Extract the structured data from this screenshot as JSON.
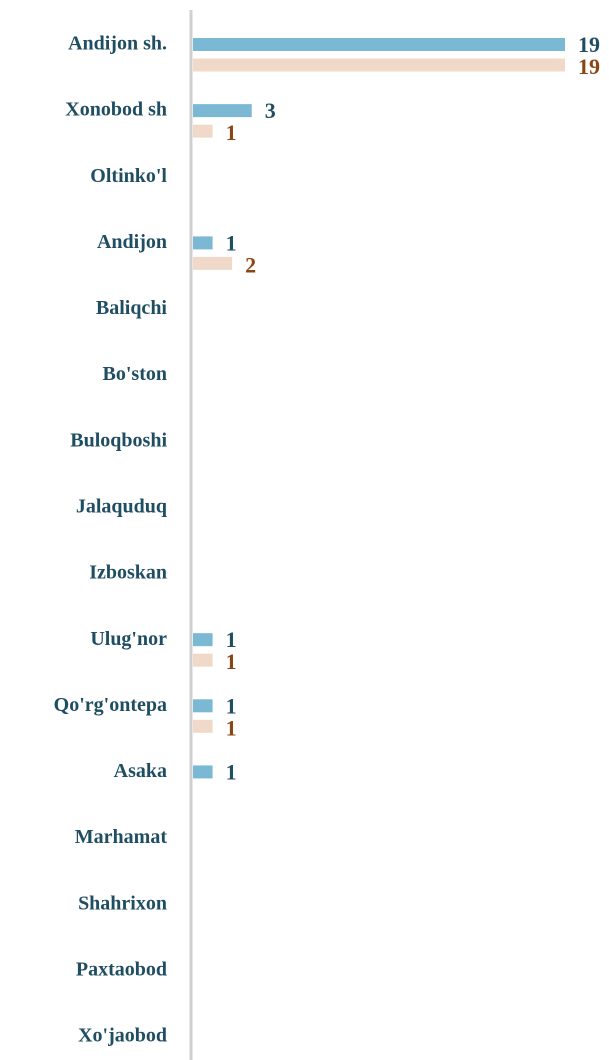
{
  "chart_data": {
    "type": "bar",
    "orientation": "horizontal",
    "categories": [
      "Andijon sh.",
      "Xonobod sh",
      "Oltinko'l",
      "Andijon",
      "Baliqchi",
      "Bo'ston",
      "Buloqboshi",
      "Jalaquduq",
      "Izboskan",
      "Ulug'nor",
      "Qo'rg'ontepa",
      "Asaka",
      "Marhamat",
      "Shahrixon",
      "Paxtaobod",
      "Xo'jaobod"
    ],
    "series": [
      {
        "color": "#7ab8d4",
        "label_color": "#1f4e63",
        "values": [
          19,
          3,
          null,
          1,
          null,
          null,
          null,
          null,
          null,
          1,
          1,
          1,
          null,
          null,
          null,
          null
        ]
      },
      {
        "color": "#f0d9c8",
        "label_color": "#8b4513",
        "values": [
          19,
          1,
          null,
          2,
          null,
          null,
          null,
          null,
          null,
          1,
          1,
          null,
          null,
          null,
          null,
          null
        ]
      }
    ]
  }
}
